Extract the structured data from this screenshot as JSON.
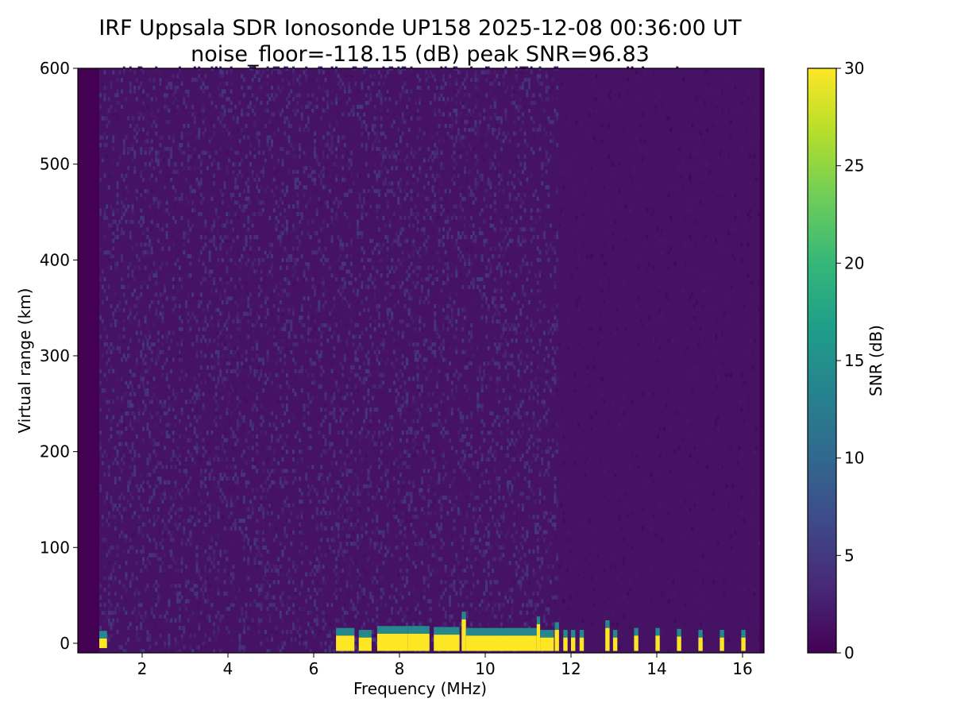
{
  "chart_data": {
    "type": "heatmap",
    "title": "IRF Uppsala SDR Ionosonde UP158 2025-12-08 00:36:00  UT",
    "subtitle": "noise_floor=-118.15 (dB) peak SNR=96.83",
    "xlabel": "Frequency (MHz)",
    "ylabel": "Virtual range (km)",
    "xlim": [
      0.5,
      16.5
    ],
    "ylim": [
      -10,
      600
    ],
    "x_ticks": [
      2,
      4,
      6,
      8,
      10,
      12,
      14,
      16
    ],
    "y_ticks": [
      0,
      100,
      200,
      300,
      400,
      500,
      600
    ],
    "colorbar": {
      "label": "SNR (dB)",
      "range": [
        0,
        30
      ],
      "ticks": [
        0,
        5,
        10,
        15,
        20,
        25,
        30
      ],
      "colormap": "viridis"
    },
    "data_extent": {
      "freq_start": 1.0,
      "freq_end": 16.4,
      "range_start": -10,
      "range_end": 600
    },
    "background_snr": 1.5,
    "strong_echoes": [
      {
        "f0": 1.0,
        "f1": 1.18,
        "r0": -5,
        "r1": 5,
        "snr": 30
      },
      {
        "f0": 6.52,
        "f1": 6.95,
        "r0": -8,
        "r1": 8,
        "snr": 30
      },
      {
        "f0": 7.05,
        "f1": 7.35,
        "r0": -8,
        "r1": 6,
        "snr": 30
      },
      {
        "f0": 7.48,
        "f1": 8.2,
        "r0": -8,
        "r1": 10,
        "snr": 30
      },
      {
        "f0": 8.2,
        "f1": 8.7,
        "r0": -8,
        "r1": 10,
        "snr": 30
      },
      {
        "f0": 8.8,
        "f1": 9.4,
        "r0": -8,
        "r1": 9,
        "snr": 30
      },
      {
        "f0": 9.45,
        "f1": 9.55,
        "r0": -8,
        "r1": 25,
        "snr": 30
      },
      {
        "f0": 9.55,
        "f1": 11.2,
        "r0": -8,
        "r1": 8,
        "snr": 30
      },
      {
        "f0": 11.2,
        "f1": 11.28,
        "r0": -8,
        "r1": 20,
        "snr": 30
      },
      {
        "f0": 11.28,
        "f1": 11.6,
        "r0": -8,
        "r1": 6,
        "snr": 30
      },
      {
        "f0": 11.62,
        "f1": 11.72,
        "r0": -8,
        "r1": 14,
        "snr": 30
      },
      {
        "f0": 11.82,
        "f1": 11.92,
        "r0": -8,
        "r1": 6,
        "snr": 30
      },
      {
        "f0": 12.0,
        "f1": 12.1,
        "r0": -8,
        "r1": 6,
        "snr": 30
      },
      {
        "f0": 12.2,
        "f1": 12.3,
        "r0": -8,
        "r1": 6,
        "snr": 30
      },
      {
        "f0": 12.8,
        "f1": 12.9,
        "r0": -8,
        "r1": 16,
        "snr": 30
      },
      {
        "f0": 12.98,
        "f1": 13.08,
        "r0": -8,
        "r1": 6,
        "snr": 30
      },
      {
        "f0": 13.47,
        "f1": 13.57,
        "r0": -8,
        "r1": 8,
        "snr": 30
      },
      {
        "f0": 13.97,
        "f1": 14.07,
        "r0": -8,
        "r1": 8,
        "snr": 30
      },
      {
        "f0": 14.47,
        "f1": 14.57,
        "r0": -8,
        "r1": 7,
        "snr": 30
      },
      {
        "f0": 14.97,
        "f1": 15.07,
        "r0": -8,
        "r1": 6,
        "snr": 30
      },
      {
        "f0": 15.47,
        "f1": 15.57,
        "r0": -8,
        "r1": 6,
        "snr": 30
      },
      {
        "f0": 15.97,
        "f1": 16.07,
        "r0": -8,
        "r1": 6,
        "snr": 30
      }
    ]
  }
}
